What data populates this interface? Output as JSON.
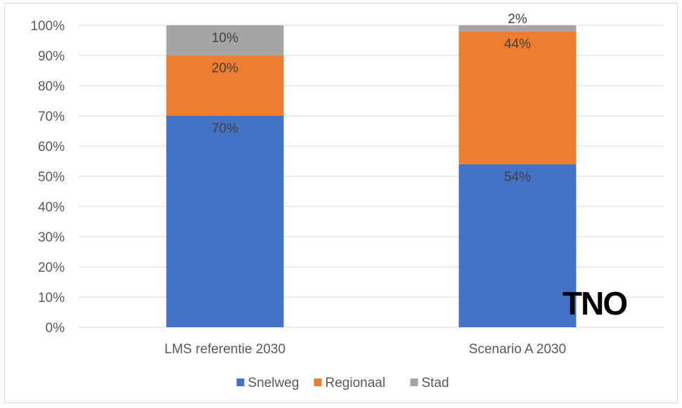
{
  "chart_data": {
    "type": "bar",
    "stacked": true,
    "categories": [
      "LMS referentie 2030",
      "Scenario A 2030"
    ],
    "series": [
      {
        "name": "Snelweg",
        "color": "#4472c4",
        "values": [
          70,
          54
        ],
        "labels": [
          "70%",
          "54%"
        ]
      },
      {
        "name": "Regionaal",
        "color": "#ed7d31",
        "values": [
          20,
          44
        ],
        "labels": [
          "20%",
          "44%"
        ]
      },
      {
        "name": "Stad",
        "color": "#a5a5a5",
        "values": [
          10,
          2
        ],
        "labels": [
          "10%",
          "2%"
        ]
      }
    ],
    "ylim": [
      0,
      100
    ],
    "yticks": [
      "0%",
      "10%",
      "20%",
      "30%",
      "40%",
      "50%",
      "60%",
      "70%",
      "80%",
      "90%",
      "100%"
    ],
    "grid": true,
    "legend_position": "bottom"
  },
  "logo": {
    "text": "TNO"
  }
}
